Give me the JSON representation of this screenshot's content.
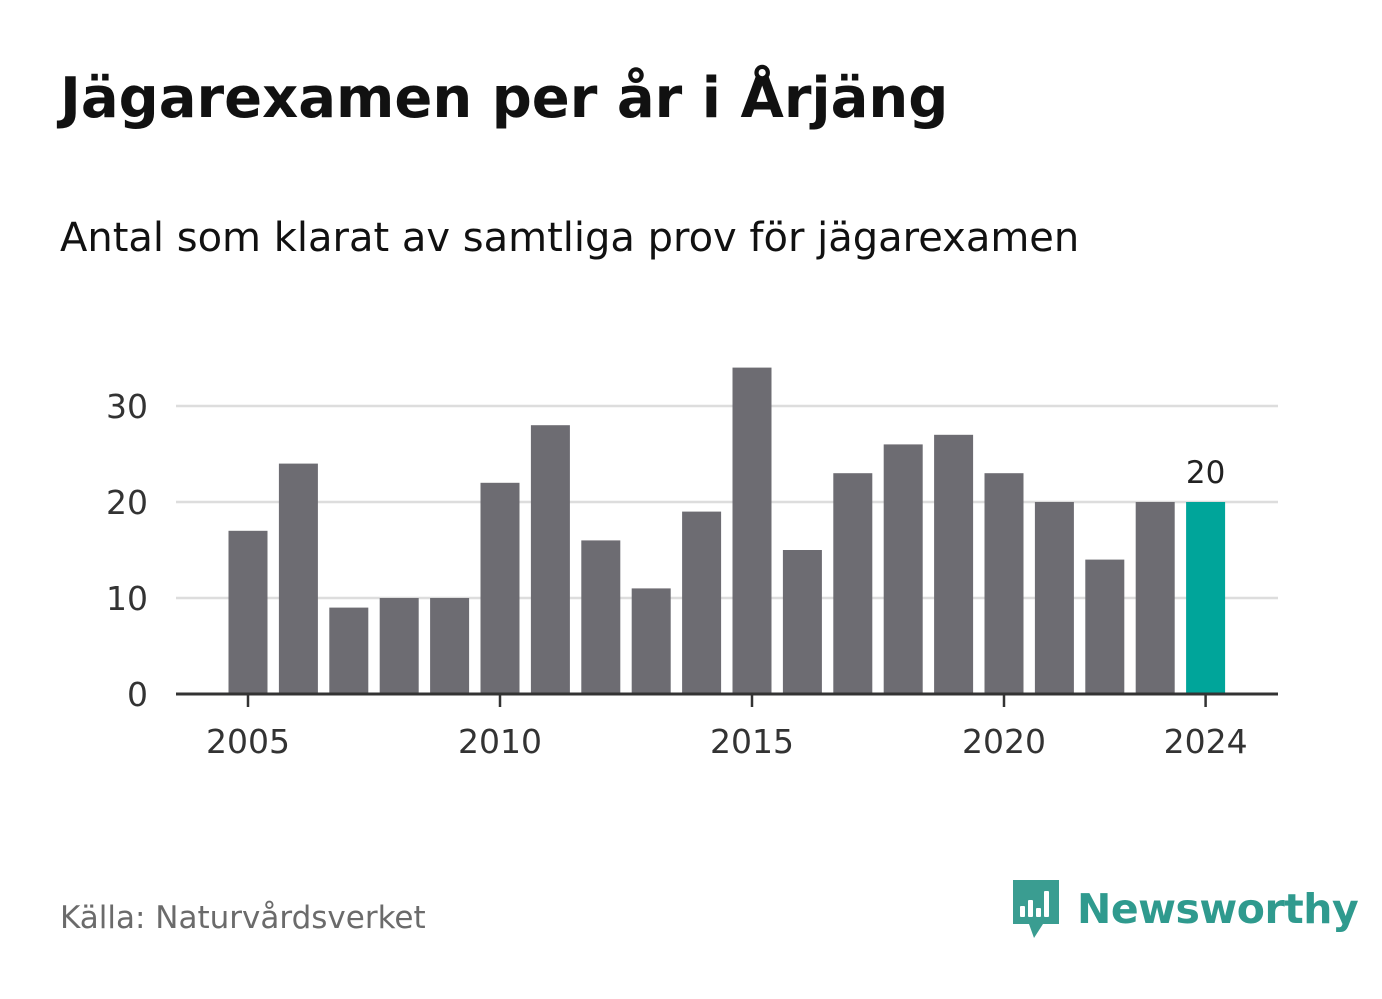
{
  "title": "Jägarexamen per år i Årjäng",
  "subtitle": "Antal som klarat av samtliga prov för jägarexamen",
  "source": "Källa: Naturvårdsverket",
  "brand": {
    "name": "Newsworthy",
    "icon": "newsworthy-logo-icon",
    "color": "#2f9a8e"
  },
  "colors": {
    "bar": "#6d6c72",
    "highlight": "#00a59a",
    "grid": "#dddddd",
    "axis": "#333333",
    "text": "#333333"
  },
  "chart_data": {
    "type": "bar",
    "categories": [
      2005,
      2006,
      2007,
      2008,
      2009,
      2010,
      2011,
      2012,
      2013,
      2014,
      2015,
      2016,
      2017,
      2018,
      2019,
      2020,
      2021,
      2022,
      2023,
      2024
    ],
    "values": [
      17,
      24,
      9,
      10,
      10,
      22,
      28,
      16,
      11,
      19,
      34,
      15,
      23,
      26,
      27,
      23,
      20,
      14,
      20,
      20
    ],
    "highlight_category": 2024,
    "data_labels": [
      {
        "category": 2024,
        "label": "20"
      }
    ],
    "x_ticks": [
      2005,
      2010,
      2015,
      2020,
      2024
    ],
    "y_ticks": [
      0,
      10,
      20,
      30
    ],
    "ylim": [
      0,
      35
    ],
    "xlabel": "",
    "ylabel": "",
    "grid": "horizontal"
  }
}
